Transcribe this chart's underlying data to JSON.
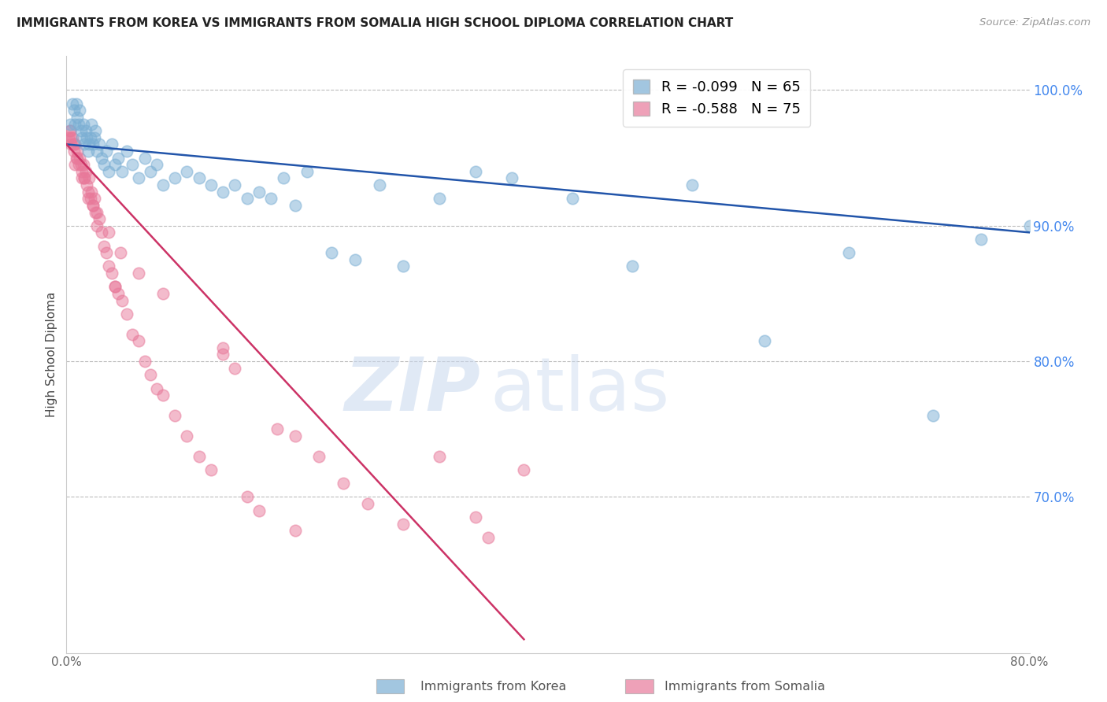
{
  "title": "IMMIGRANTS FROM KOREA VS IMMIGRANTS FROM SOMALIA HIGH SCHOOL DIPLOMA CORRELATION CHART",
  "source": "Source: ZipAtlas.com",
  "ylabel": "High School Diploma",
  "x_min": 0.0,
  "x_max": 0.8,
  "y_min": 0.585,
  "y_max": 1.025,
  "y_ticks": [
    0.7,
    0.8,
    0.9,
    1.0
  ],
  "y_tick_labels": [
    "70.0%",
    "80.0%",
    "90.0%",
    "100.0%"
  ],
  "x_ticks": [
    0.0,
    0.1,
    0.2,
    0.3,
    0.4,
    0.5,
    0.6,
    0.7,
    0.8
  ],
  "x_tick_labels": [
    "0.0%",
    "",
    "",
    "",
    "",
    "",
    "",
    "",
    "80.0%"
  ],
  "korea_color": "#7bafd4",
  "somalia_color": "#e8799a",
  "korea_R": -0.099,
  "korea_N": 65,
  "somalia_R": -0.588,
  "somalia_N": 75,
  "trendline_korea_color": "#2255aa",
  "trendline_somalia_color": "#cc3366",
  "watermark_zip": "ZIP",
  "watermark_atlas": "atlas",
  "legend_korea_label": "Immigrants from Korea",
  "legend_somalia_label": "Immigrants from Somalia",
  "korea_x": [
    0.003,
    0.005,
    0.006,
    0.007,
    0.008,
    0.009,
    0.01,
    0.011,
    0.012,
    0.013,
    0.014,
    0.015,
    0.016,
    0.017,
    0.018,
    0.019,
    0.02,
    0.021,
    0.022,
    0.023,
    0.024,
    0.025,
    0.027,
    0.029,
    0.031,
    0.033,
    0.035,
    0.038,
    0.04,
    0.043,
    0.046,
    0.05,
    0.055,
    0.06,
    0.065,
    0.07,
    0.075,
    0.08,
    0.09,
    0.1,
    0.11,
    0.12,
    0.13,
    0.14,
    0.15,
    0.16,
    0.17,
    0.18,
    0.19,
    0.2,
    0.22,
    0.24,
    0.26,
    0.28,
    0.31,
    0.34,
    0.37,
    0.42,
    0.47,
    0.52,
    0.58,
    0.65,
    0.72,
    0.76,
    0.8
  ],
  "korea_y": [
    0.975,
    0.99,
    0.985,
    0.975,
    0.99,
    0.98,
    0.975,
    0.985,
    0.97,
    0.965,
    0.975,
    0.96,
    0.97,
    0.965,
    0.955,
    0.96,
    0.965,
    0.975,
    0.96,
    0.965,
    0.97,
    0.955,
    0.96,
    0.95,
    0.945,
    0.955,
    0.94,
    0.96,
    0.945,
    0.95,
    0.94,
    0.955,
    0.945,
    0.935,
    0.95,
    0.94,
    0.945,
    0.93,
    0.935,
    0.94,
    0.935,
    0.93,
    0.925,
    0.93,
    0.92,
    0.925,
    0.92,
    0.935,
    0.915,
    0.94,
    0.88,
    0.875,
    0.93,
    0.87,
    0.92,
    0.94,
    0.935,
    0.92,
    0.87,
    0.93,
    0.815,
    0.88,
    0.76,
    0.89,
    0.9
  ],
  "somalia_x": [
    0.002,
    0.003,
    0.004,
    0.005,
    0.006,
    0.007,
    0.008,
    0.009,
    0.01,
    0.011,
    0.012,
    0.013,
    0.014,
    0.015,
    0.016,
    0.017,
    0.018,
    0.019,
    0.02,
    0.021,
    0.022,
    0.023,
    0.024,
    0.025,
    0.027,
    0.029,
    0.031,
    0.033,
    0.035,
    0.038,
    0.04,
    0.043,
    0.046,
    0.05,
    0.055,
    0.06,
    0.065,
    0.07,
    0.075,
    0.08,
    0.09,
    0.1,
    0.11,
    0.12,
    0.13,
    0.14,
    0.15,
    0.16,
    0.175,
    0.19,
    0.21,
    0.23,
    0.25,
    0.28,
    0.31,
    0.34,
    0.35,
    0.38,
    0.19,
    0.13,
    0.08,
    0.06,
    0.045,
    0.035,
    0.025,
    0.018,
    0.013,
    0.009,
    0.006,
    0.004,
    0.003,
    0.007,
    0.015,
    0.022,
    0.04
  ],
  "somalia_y": [
    0.965,
    0.97,
    0.96,
    0.965,
    0.955,
    0.96,
    0.95,
    0.955,
    0.945,
    0.95,
    0.945,
    0.94,
    0.945,
    0.935,
    0.94,
    0.93,
    0.925,
    0.935,
    0.92,
    0.925,
    0.915,
    0.92,
    0.91,
    0.9,
    0.905,
    0.895,
    0.885,
    0.88,
    0.87,
    0.865,
    0.855,
    0.85,
    0.845,
    0.835,
    0.82,
    0.815,
    0.8,
    0.79,
    0.78,
    0.775,
    0.76,
    0.745,
    0.73,
    0.72,
    0.81,
    0.795,
    0.7,
    0.69,
    0.75,
    0.675,
    0.73,
    0.71,
    0.695,
    0.68,
    0.73,
    0.685,
    0.67,
    0.72,
    0.745,
    0.805,
    0.85,
    0.865,
    0.88,
    0.895,
    0.91,
    0.92,
    0.935,
    0.95,
    0.96,
    0.965,
    0.97,
    0.945,
    0.935,
    0.915,
    0.855
  ],
  "korea_trend_x0": 0.0,
  "korea_trend_x1": 0.8,
  "korea_trend_y0": 0.96,
  "korea_trend_y1": 0.895,
  "somalia_trend_x0": 0.0,
  "somalia_trend_x1": 0.38,
  "somalia_trend_y0": 0.96,
  "somalia_trend_y1": 0.595
}
